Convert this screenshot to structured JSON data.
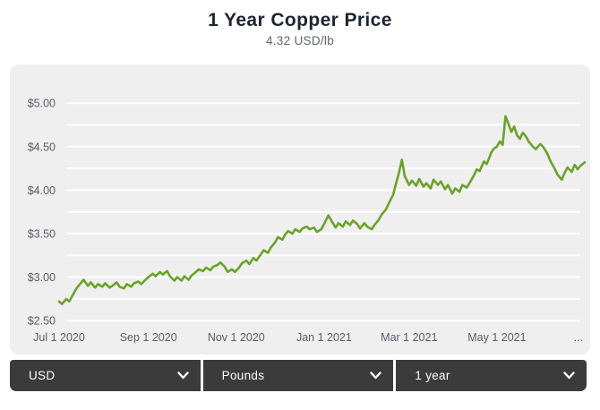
{
  "header": {
    "title": "1 Year Copper Price",
    "subtitle": "4.32 USD/lb"
  },
  "controls": {
    "currency": {
      "value": "USD"
    },
    "weight": {
      "value": "Pounds"
    },
    "range": {
      "value": "1 year"
    }
  },
  "colors": {
    "line": "#6ba22a",
    "panel_background": "#efefef",
    "gridline": "#ffffff",
    "axis_text": "#585d66",
    "title_text": "#1d2530",
    "subtitle_text": "#606468",
    "control_background": "#3b3b3b",
    "control_text": "#ffffff"
  },
  "chart_data": {
    "type": "line",
    "title": "1 Year Copper Price",
    "current_value": "4.32 USD/lb",
    "unit": "USD/lb",
    "series_name": "Copper price",
    "legend": "none",
    "grid": "horizontal, every 0.25, white on gray",
    "x_range_days": 365,
    "x_ticks": [
      {
        "day": 0,
        "label": "Jul 1 2020"
      },
      {
        "day": 62,
        "label": "Sep 1 2020"
      },
      {
        "day": 123,
        "label": "Nov 1 2020"
      },
      {
        "day": 184,
        "label": "Jan 1 2021"
      },
      {
        "day": 243,
        "label": "Mar 1 2021"
      },
      {
        "day": 304,
        "label": "May 1 2021"
      },
      {
        "day": 365,
        "label": "..."
      }
    ],
    "ylim": [
      2.5,
      5.0
    ],
    "y_gridline_step": 0.25,
    "y_axis_labels": [
      {
        "value": 5.0,
        "label": "$5.00"
      },
      {
        "value": 4.5,
        "label": "$4.50"
      },
      {
        "value": 4.0,
        "label": "$4.00"
      },
      {
        "value": 3.5,
        "label": "$3.50"
      },
      {
        "value": 3.0,
        "label": "$3.00"
      },
      {
        "value": 2.5,
        "label": "$2.50"
      }
    ],
    "points_format": [
      "days_since_jul_1_2020",
      "usd_per_lb"
    ],
    "points": [
      [
        0,
        2.72
      ],
      [
        2,
        2.69
      ],
      [
        5,
        2.75
      ],
      [
        7,
        2.72
      ],
      [
        10,
        2.81
      ],
      [
        12,
        2.87
      ],
      [
        15,
        2.93
      ],
      [
        17,
        2.97
      ],
      [
        20,
        2.9
      ],
      [
        22,
        2.94
      ],
      [
        25,
        2.88
      ],
      [
        27,
        2.92
      ],
      [
        30,
        2.89
      ],
      [
        32,
        2.93
      ],
      [
        35,
        2.88
      ],
      [
        37,
        2.9
      ],
      [
        40,
        2.94
      ],
      [
        42,
        2.89
      ],
      [
        45,
        2.87
      ],
      [
        47,
        2.92
      ],
      [
        50,
        2.89
      ],
      [
        52,
        2.93
      ],
      [
        55,
        2.95
      ],
      [
        57,
        2.92
      ],
      [
        60,
        2.97
      ],
      [
        62,
        3.0
      ],
      [
        65,
        3.04
      ],
      [
        67,
        3.01
      ],
      [
        70,
        3.06
      ],
      [
        72,
        3.03
      ],
      [
        75,
        3.07
      ],
      [
        77,
        3.01
      ],
      [
        80,
        2.96
      ],
      [
        82,
        3.0
      ],
      [
        85,
        2.96
      ],
      [
        87,
        3.01
      ],
      [
        90,
        2.97
      ],
      [
        92,
        3.02
      ],
      [
        95,
        3.06
      ],
      [
        97,
        3.09
      ],
      [
        100,
        3.07
      ],
      [
        102,
        3.11
      ],
      [
        105,
        3.08
      ],
      [
        107,
        3.12
      ],
      [
        110,
        3.14
      ],
      [
        112,
        3.17
      ],
      [
        115,
        3.12
      ],
      [
        117,
        3.06
      ],
      [
        120,
        3.09
      ],
      [
        122,
        3.06
      ],
      [
        125,
        3.11
      ],
      [
        127,
        3.16
      ],
      [
        130,
        3.19
      ],
      [
        132,
        3.15
      ],
      [
        135,
        3.22
      ],
      [
        137,
        3.19
      ],
      [
        140,
        3.26
      ],
      [
        142,
        3.31
      ],
      [
        145,
        3.28
      ],
      [
        147,
        3.34
      ],
      [
        150,
        3.4
      ],
      [
        152,
        3.46
      ],
      [
        155,
        3.43
      ],
      [
        157,
        3.49
      ],
      [
        159,
        3.53
      ],
      [
        162,
        3.5
      ],
      [
        164,
        3.55
      ],
      [
        167,
        3.52
      ],
      [
        169,
        3.56
      ],
      [
        172,
        3.58
      ],
      [
        174,
        3.55
      ],
      [
        177,
        3.57
      ],
      [
        179,
        3.52
      ],
      [
        182,
        3.55
      ],
      [
        184,
        3.61
      ],
      [
        187,
        3.71
      ],
      [
        189,
        3.65
      ],
      [
        192,
        3.57
      ],
      [
        194,
        3.62
      ],
      [
        197,
        3.58
      ],
      [
        199,
        3.64
      ],
      [
        202,
        3.6
      ],
      [
        204,
        3.65
      ],
      [
        207,
        3.61
      ],
      [
        209,
        3.56
      ],
      [
        212,
        3.62
      ],
      [
        214,
        3.58
      ],
      [
        217,
        3.55
      ],
      [
        219,
        3.6
      ],
      [
        222,
        3.66
      ],
      [
        224,
        3.72
      ],
      [
        227,
        3.78
      ],
      [
        229,
        3.85
      ],
      [
        232,
        3.95
      ],
      [
        234,
        4.08
      ],
      [
        236,
        4.2
      ],
      [
        238,
        4.35
      ],
      [
        240,
        4.16
      ],
      [
        243,
        4.06
      ],
      [
        245,
        4.11
      ],
      [
        248,
        4.05
      ],
      [
        250,
        4.13
      ],
      [
        253,
        4.04
      ],
      [
        255,
        4.08
      ],
      [
        258,
        4.02
      ],
      [
        260,
        4.12
      ],
      [
        263,
        4.06
      ],
      [
        265,
        4.1
      ],
      [
        268,
        4.01
      ],
      [
        270,
        4.06
      ],
      [
        273,
        3.96
      ],
      [
        275,
        4.02
      ],
      [
        278,
        3.98
      ],
      [
        280,
        4.06
      ],
      [
        283,
        4.03
      ],
      [
        285,
        4.08
      ],
      [
        288,
        4.17
      ],
      [
        290,
        4.24
      ],
      [
        292,
        4.22
      ],
      [
        295,
        4.33
      ],
      [
        297,
        4.3
      ],
      [
        300,
        4.43
      ],
      [
        302,
        4.48
      ],
      [
        304,
        4.5
      ],
      [
        306,
        4.56
      ],
      [
        308,
        4.52
      ],
      [
        310,
        4.85
      ],
      [
        312,
        4.76
      ],
      [
        314,
        4.67
      ],
      [
        316,
        4.73
      ],
      [
        318,
        4.63
      ],
      [
        320,
        4.59
      ],
      [
        322,
        4.66
      ],
      [
        324,
        4.62
      ],
      [
        326,
        4.56
      ],
      [
        329,
        4.5
      ],
      [
        331,
        4.47
      ],
      [
        334,
        4.53
      ],
      [
        336,
        4.5
      ],
      [
        339,
        4.42
      ],
      [
        341,
        4.34
      ],
      [
        344,
        4.25
      ],
      [
        346,
        4.18
      ],
      [
        349,
        4.12
      ],
      [
        351,
        4.2
      ],
      [
        353,
        4.26
      ],
      [
        356,
        4.21
      ],
      [
        358,
        4.29
      ],
      [
        360,
        4.24
      ],
      [
        362,
        4.28
      ],
      [
        365,
        4.32
      ]
    ]
  }
}
